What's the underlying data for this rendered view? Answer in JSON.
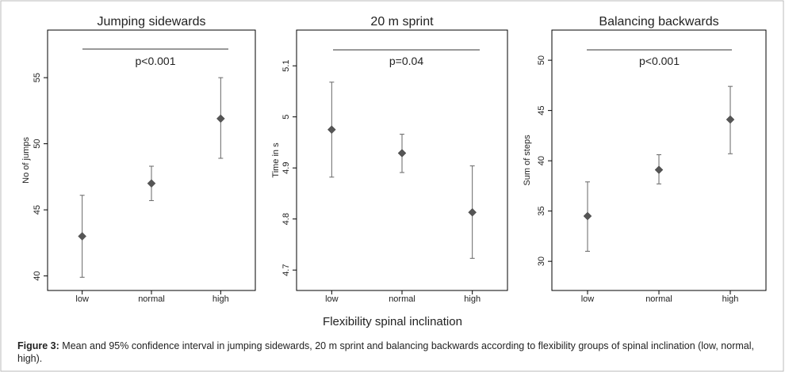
{
  "xlabel_common": "Flexibility spinal inclination",
  "caption": {
    "label": "Figure 3:",
    "text": "Mean and 95% confidence interval in jumping sidewards, 20 m sprint and balancing backwards according to flexibility groups of spinal inclination (low, normal, high)."
  },
  "chart_data": [
    {
      "type": "scatter",
      "title": "Jumping sidewards",
      "ylabel": "No of jumps",
      "categories": [
        "low",
        "normal",
        "high"
      ],
      "values": [
        43.0,
        47.0,
        51.9
      ],
      "ci_low": [
        39.9,
        45.7,
        48.9
      ],
      "ci_high": [
        46.1,
        48.3,
        55.0
      ],
      "ylim": [
        38.9,
        58.6
      ],
      "yticks": [
        40,
        45,
        50,
        55
      ],
      "annotation": "p<0.001"
    },
    {
      "type": "scatter",
      "title": "20 m sprint",
      "ylabel": "Time in s",
      "categories": [
        "low",
        "normal",
        "high"
      ],
      "values": [
        4.975,
        4.929,
        4.813
      ],
      "ci_low": [
        4.882,
        4.891,
        4.723
      ],
      "ci_high": [
        5.068,
        4.966,
        4.904
      ],
      "ylim": [
        4.66,
        5.17
      ],
      "yticks": [
        4.7,
        4.8,
        4.9,
        5,
        5.1
      ],
      "annotation": "p=0.04"
    },
    {
      "type": "scatter",
      "title": "Balancing backwards",
      "ylabel": "Sum of steps",
      "categories": [
        "low",
        "normal",
        "high"
      ],
      "values": [
        34.5,
        39.1,
        44.1
      ],
      "ci_low": [
        31.0,
        37.7,
        40.7
      ],
      "ci_high": [
        37.9,
        40.6,
        47.4
      ],
      "ylim": [
        27.1,
        53.0
      ],
      "yticks": [
        30,
        35,
        40,
        45,
        50
      ],
      "annotation": "p<0.001"
    }
  ]
}
